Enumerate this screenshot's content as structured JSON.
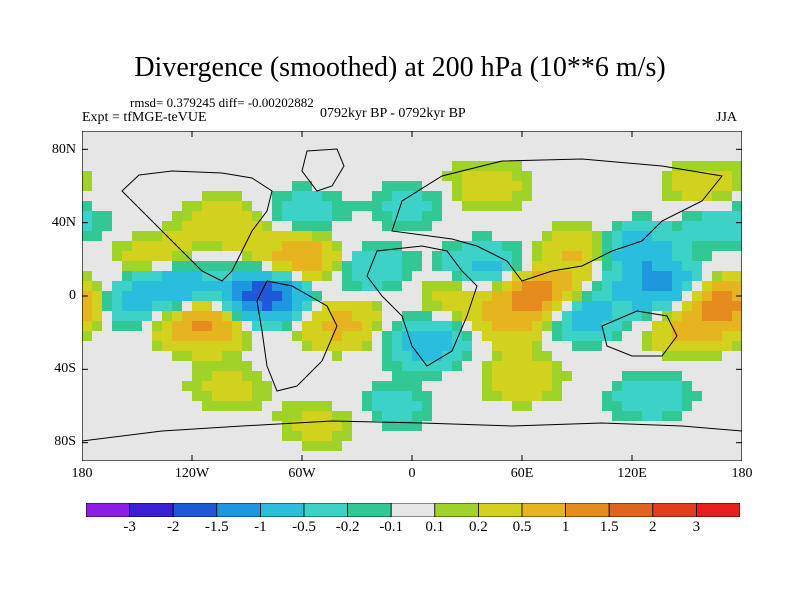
{
  "header": {
    "title": "Divergence (smoothed) at 200 hPa (10**6 m/s)",
    "stats": "rmsd= 0.379245 diff= -0.00202882",
    "experiment": "Expt = tfMGE-teVUE",
    "period": "0792kyr BP - 0792kyr BP",
    "season": "JJA"
  },
  "axes": {
    "lat_labels": [
      "80N",
      "40N",
      "0",
      "40S",
      "80S"
    ],
    "lon_labels": [
      "180",
      "120W",
      "60W",
      "0",
      "60E",
      "120E",
      "180"
    ]
  },
  "colorbar": {
    "labels": [
      "-3",
      "-2",
      "-1.5",
      "-1",
      "-0.5",
      "-0.2",
      "-0.1",
      "0.1",
      "0.2",
      "0.5",
      "1",
      "1.5",
      "2",
      "3"
    ],
    "colors": [
      "#8a1ee8",
      "#3a1ed8",
      "#1e5ad8",
      "#1e96e0",
      "#28bedc",
      "#3cd2c8",
      "#32c896",
      "#e6e6e6",
      "#a0d228",
      "#d2d21e",
      "#e6b41e",
      "#e68c1e",
      "#e0641e",
      "#e63c1e",
      "#e61e1e"
    ]
  },
  "chart_data": {
    "type": "heatmap",
    "title": "Divergence (smoothed) at 200 hPa (10**6 m/s)",
    "projection": "cylindrical-equidistant",
    "x_range_deg": [
      -180,
      180
    ],
    "y_range_deg": [
      -90,
      90
    ],
    "levels": [
      -3,
      -2,
      -1.5,
      -1,
      -0.5,
      -0.2,
      -0.1,
      0.1,
      0.2,
      0.5,
      1,
      1.5,
      2,
      3
    ],
    "blobs": [
      {
        "lon": -115,
        "lat": -15,
        "value": 1.2
      },
      {
        "lon": -60,
        "lat": 20,
        "value": 1.0
      },
      {
        "lon": -80,
        "lat": 0,
        "value": -2.0
      },
      {
        "lon": -130,
        "lat": 5,
        "value": -1.0
      },
      {
        "lon": -160,
        "lat": -5,
        "value": -0.6
      },
      {
        "lon": -140,
        "lat": 20,
        "value": 0.5
      },
      {
        "lon": -40,
        "lat": -15,
        "value": 0.7
      },
      {
        "lon": -25,
        "lat": 15,
        "value": -0.5
      },
      {
        "lon": 10,
        "lat": -25,
        "value": -0.8
      },
      {
        "lon": 25,
        "lat": 0,
        "value": 0.4
      },
      {
        "lon": 40,
        "lat": 15,
        "value": -0.7
      },
      {
        "lon": 70,
        "lat": 0,
        "value": 1.5
      },
      {
        "lon": 55,
        "lat": -15,
        "value": 0.6
      },
      {
        "lon": 90,
        "lat": -10,
        "value": -1.0
      },
      {
        "lon": 95,
        "lat": 25,
        "value": 0.7
      },
      {
        "lon": 120,
        "lat": 25,
        "value": -1.0
      },
      {
        "lon": 135,
        "lat": 5,
        "value": -1.2
      },
      {
        "lon": 170,
        "lat": -5,
        "value": 1.4
      },
      {
        "lon": 150,
        "lat": -20,
        "value": 0.5
      },
      {
        "lon": -100,
        "lat": 40,
        "value": 0.5
      },
      {
        "lon": -60,
        "lat": 45,
        "value": -0.4
      },
      {
        "lon": 0,
        "lat": 50,
        "value": -0.3
      },
      {
        "lon": 40,
        "lat": 60,
        "value": 0.4
      },
      {
        "lon": 160,
        "lat": 60,
        "value": 0.4
      },
      {
        "lon": -100,
        "lat": -50,
        "value": 0.3
      },
      {
        "lon": 60,
        "lat": -45,
        "value": 0.4
      },
      {
        "lon": 130,
        "lat": -55,
        "value": -0.4
      },
      {
        "lon": -10,
        "lat": -60,
        "value": -0.3
      },
      {
        "lon": -50,
        "lat": -70,
        "value": 0.3
      },
      {
        "lon": 170,
        "lat": 40,
        "value": -0.4
      }
    ]
  }
}
